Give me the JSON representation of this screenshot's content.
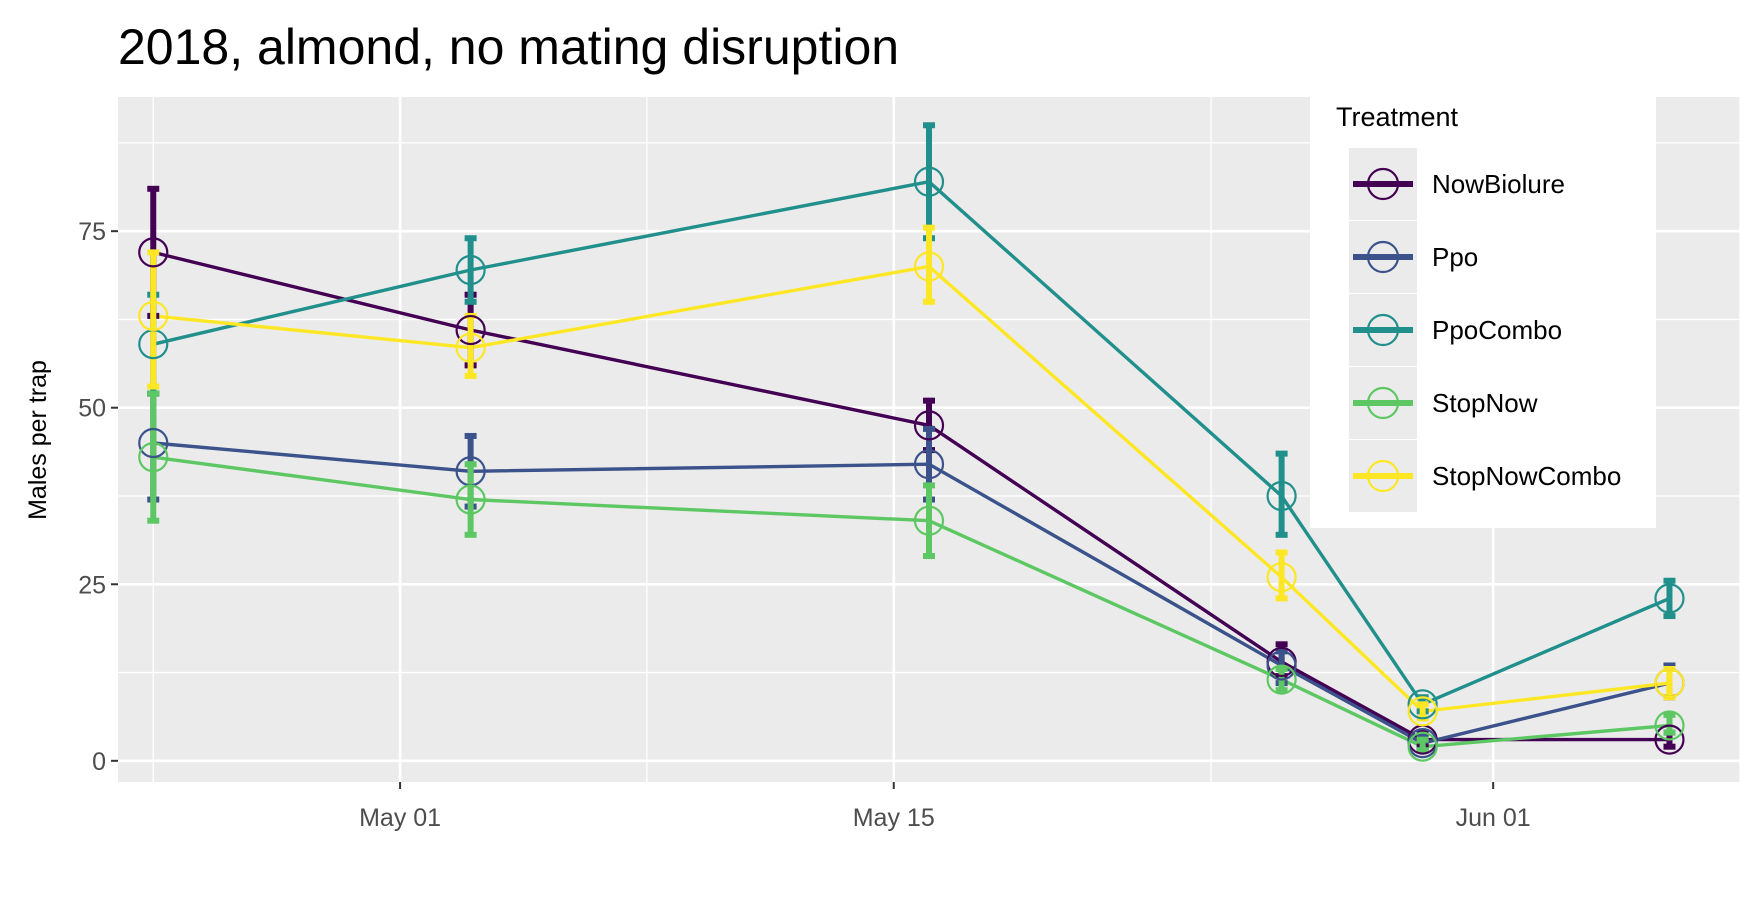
{
  "chart_data": {
    "type": "line",
    "title": "2018, almond, no mating disruption",
    "xlabel": "",
    "ylabel": "Males per trap",
    "x_dates": [
      "2018-04-24",
      "2018-05-03",
      "2018-05-16",
      "2018-05-26",
      "2018-05-30",
      "2018-06-06"
    ],
    "xlim": [
      "2018-04-23",
      "2018-06-08"
    ],
    "x_ticks": [
      {
        "date": "2018-05-01",
        "label": "May 01"
      },
      {
        "date": "2018-05-15",
        "label": "May 15"
      },
      {
        "date": "2018-06-01",
        "label": "Jun 01"
      }
    ],
    "x_minor_ticks": [
      "2018-04-24",
      "2018-05-08",
      "2018-05-24",
      "2018-06-08"
    ],
    "ylim": [
      -3,
      94
    ],
    "y_ticks": [
      0,
      25,
      50,
      75
    ],
    "y_minor_ticks": [
      12.5,
      37.5,
      62.5,
      87.5
    ],
    "grid": true,
    "legend": {
      "title": "Treatment",
      "position": "top-right"
    },
    "series": [
      {
        "name": "NowBiolure",
        "color": "#440154",
        "values": [
          72,
          61,
          47.5,
          14,
          3,
          3
        ],
        "err_low": [
          63,
          56,
          44,
          12,
          2,
          2
        ],
        "err_high": [
          81,
          66,
          51,
          16.5,
          4,
          4
        ]
      },
      {
        "name": "Ppo",
        "color": "#3B528B",
        "values": [
          45,
          41,
          42,
          13.5,
          2.5,
          11
        ],
        "err_low": [
          37,
          36,
          37,
          11,
          1.5,
          9
        ],
        "err_high": [
          52,
          46,
          47,
          15.5,
          3.5,
          13.5
        ]
      },
      {
        "name": "PpoCombo",
        "color": "#21908C",
        "values": [
          59,
          69.5,
          82,
          37.5,
          8,
          23
        ],
        "err_low": [
          52,
          65,
          74,
          32,
          7,
          20.5
        ],
        "err_high": [
          66,
          74,
          90,
          43.5,
          9,
          25.5
        ]
      },
      {
        "name": "StopNow",
        "color": "#5DC863",
        "values": [
          43,
          37,
          34,
          11.5,
          2,
          5
        ],
        "err_low": [
          34,
          32,
          29,
          10,
          1.5,
          4
        ],
        "err_high": [
          52,
          42,
          39,
          13,
          3,
          6.5
        ]
      },
      {
        "name": "StopNowCombo",
        "color": "#FDE725",
        "values": [
          63,
          58.5,
          70,
          26,
          7,
          11
        ],
        "err_low": [
          53,
          54.5,
          65,
          23,
          6,
          9
        ],
        "err_high": [
          72,
          63,
          75.5,
          29.5,
          8,
          13
        ]
      }
    ]
  }
}
